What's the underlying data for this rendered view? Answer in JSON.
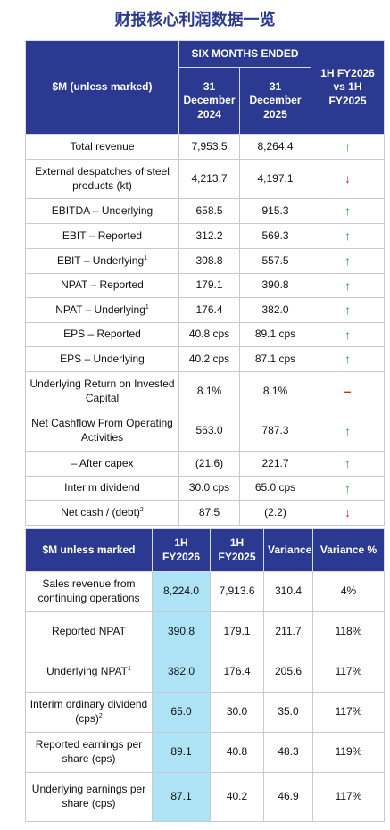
{
  "header": {
    "title": "财报核心利润数据一览"
  },
  "table1": {
    "head": {
      "label": "$M (unless marked)",
      "period": "SIX MONTHS ENDED",
      "col1": "31 December 2024",
      "col2": "31 December 2025",
      "compare": "1H FY2026 vs 1H FY2025"
    },
    "rows": [
      {
        "label": "Total revenue",
        "v1": "7,953.5",
        "v2": "8,264.4",
        "arrow": "↑",
        "color": "#2e9e3e"
      },
      {
        "label": "External despatches of steel products (kt)",
        "v1": "4,213.7",
        "v2": "4,197.1",
        "arrow": "↓",
        "color": "#e0262b"
      },
      {
        "label": "EBITDA – Underlying",
        "v1": "658.5",
        "v2": "915.3",
        "arrow": "↑",
        "color": "#2e9e3e"
      },
      {
        "label": "EBIT – Reported",
        "v1": "312.2",
        "v2": "569.3",
        "arrow": "↑",
        "color": "#2e9e3e"
      },
      {
        "label": "EBIT – Underlying",
        "note": "1",
        "v1": "308.8",
        "v2": "557.5",
        "arrow": "↑",
        "color": "#2e9e3e"
      },
      {
        "label": "NPAT – Reported",
        "v1": "179.1",
        "v2": "390.8",
        "arrow": "↑",
        "color": "#2e9e3e"
      },
      {
        "label": "NPAT – Underlying",
        "note": "1",
        "v1": "176.4",
        "v2": "382.0",
        "arrow": "↑",
        "color": "#2e9e3e"
      },
      {
        "label": "EPS – Reported",
        "v1": "40.8 cps",
        "v2": "89.1 cps",
        "arrow": "↑",
        "color": "#2e9e3e"
      },
      {
        "label": "EPS – Underlying",
        "v1": "40.2 cps",
        "v2": "87.1 cps",
        "arrow": "↑",
        "color": "#2e9e3e"
      },
      {
        "label": "Underlying Return on Invested Capital",
        "v1": "8.1%",
        "v2": "8.1%",
        "arrow": "–",
        "color": "#e0262b"
      },
      {
        "label": "Net Cashflow From Operating Activities",
        "v1": "563.0",
        "v2": "787.3",
        "arrow": "↑",
        "color": "#2e9e3e"
      },
      {
        "label": "– After capex",
        "v1": "(21.6)",
        "v2": "221.7",
        "arrow": "↑",
        "color": "#2e9e3e"
      },
      {
        "label": "Interim dividend",
        "v1": "30.0 cps",
        "v2": "65.0 cps",
        "arrow": "↑",
        "color": "#2e9e3e"
      },
      {
        "label": "Net cash / (debt)",
        "note": "2",
        "v1": "87.5",
        "v2": "(2.2)",
        "arrow": "↓",
        "color": "#e0262b"
      }
    ]
  },
  "table2": {
    "head": [
      "$M unless marked",
      "1H FY2026",
      "1H FY2025",
      "Variance",
      "Variance %"
    ],
    "rows": [
      {
        "label": "Sales revenue from continuing operations",
        "cells": [
          "8,224.0",
          "7,913.6",
          "310.4",
          "4%"
        ]
      },
      {
        "label": "Reported NPAT",
        "cells": [
          "390.8",
          "179.1",
          "211.7",
          "118%"
        ]
      },
      {
        "label": "Underlying NPAT",
        "note": "1",
        "cells": [
          "382.0",
          "176.4",
          "205.6",
          "117%"
        ]
      },
      {
        "label": "Interim ordinary dividend (cps)",
        "note": "2",
        "cells": [
          "65.0",
          "30.0",
          "35.0",
          "117%"
        ]
      },
      {
        "label": "Reported earnings per share (cps)",
        "cells": [
          "89.1",
          "40.8",
          "48.3",
          "119%"
        ]
      },
      {
        "label": "Underlying earnings per share (cps)",
        "cells": [
          "87.1",
          "40.2",
          "46.9",
          "117%"
        ]
      }
    ]
  }
}
